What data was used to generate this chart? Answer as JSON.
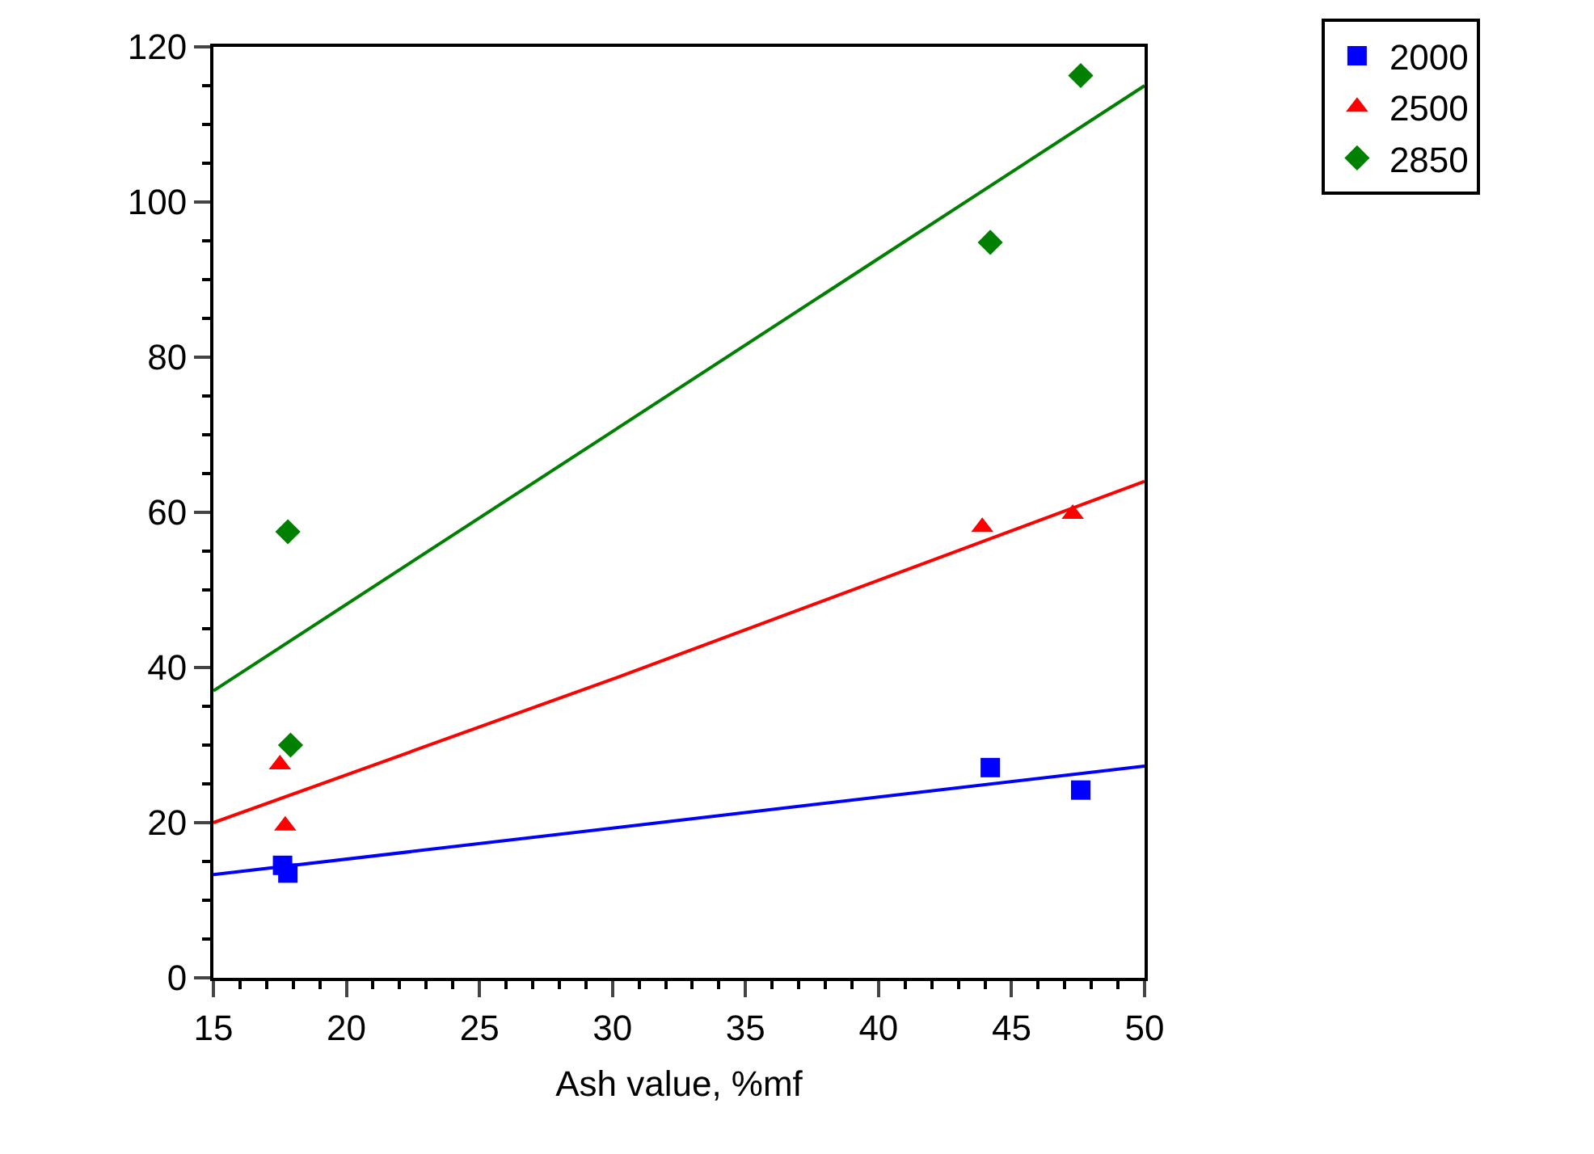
{
  "chart_data": {
    "type": "scatter",
    "xlabel": "Ash value, %mf",
    "xlim": [
      15,
      50
    ],
    "xticks": [
      15,
      20,
      25,
      30,
      35,
      40,
      45,
      50
    ],
    "ylim": [
      0,
      120
    ],
    "yticks": [
      0,
      20,
      40,
      60,
      80,
      100,
      120
    ],
    "legend": "top right",
    "series": [
      {
        "name": "2000",
        "color": "#0000ff",
        "marker": "square",
        "x": [
          17.6,
          17.8,
          44.2,
          47.6
        ],
        "values": [
          14.5,
          13.5,
          27.1,
          24.2
        ]
      },
      {
        "name": "2500",
        "color": "#ff0000",
        "marker": "triangle",
        "x": [
          17.5,
          17.7,
          43.9,
          47.3
        ],
        "values": [
          27.5,
          19.6,
          58.1,
          59.8
        ]
      },
      {
        "name": "2850",
        "color": "#008000",
        "marker": "diamond",
        "x": [
          17.8,
          17.9,
          44.2,
          47.6
        ],
        "values": [
          57.5,
          30.0,
          94.8,
          116.3
        ]
      },
      {
        "type": "line",
        "color": "#0000ff",
        "x": [
          15,
          50
        ],
        "values": [
          13.3,
          27.3
        ]
      },
      {
        "type": "line",
        "color": "#ff0000",
        "x": [
          15,
          30,
          50
        ],
        "values": [
          20.0,
          38.5,
          64.0
        ]
      },
      {
        "type": "line",
        "color": "#008000",
        "x": [
          15,
          50
        ],
        "values": [
          37.0,
          115.0
        ]
      }
    ]
  }
}
